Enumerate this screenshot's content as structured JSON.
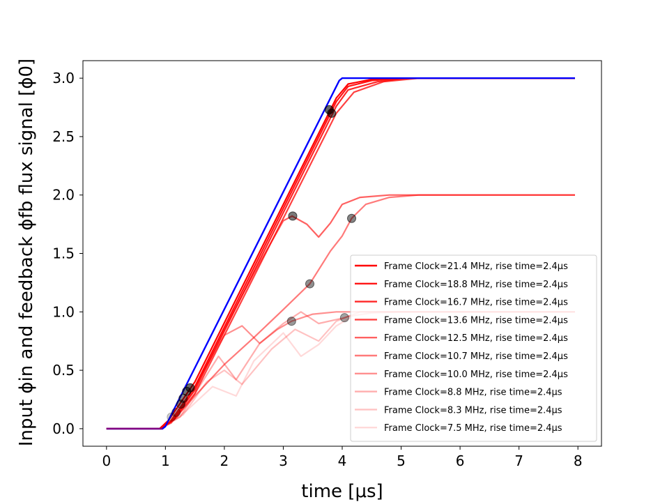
{
  "chart_data": {
    "type": "line",
    "xlabel": "time [μs]",
    "ylabel": "Input ϕin and feedback ϕfb flux signal [ϕ0]",
    "xlim": [
      -0.4,
      8.4
    ],
    "ylim": [
      -0.15,
      3.15
    ],
    "xticks": [
      0,
      1,
      2,
      3,
      4,
      5,
      6,
      7,
      8
    ],
    "yticks": [
      0.0,
      0.5,
      1.0,
      1.5,
      2.0,
      2.5,
      3.0
    ],
    "xtick_labels": [
      "0",
      "1",
      "2",
      "3",
      "4",
      "5",
      "6",
      "7",
      "8"
    ],
    "ytick_labels": [
      "0.0",
      "0.5",
      "1.0",
      "1.5",
      "2.0",
      "2.5",
      "3.0"
    ],
    "grid": false,
    "legend_position": "lower-right",
    "input_series": {
      "color": "#0000ff",
      "x": [
        0,
        0.95,
        1.0,
        3.95,
        4.0,
        7.95
      ],
      "y": [
        0,
        0,
        0.02,
        2.98,
        3.0,
        3.0
      ]
    },
    "series": [
      {
        "name": "Frame Clock=21.4 MHz, rise time=2.4μs",
        "color": "#ff0000",
        "opacity": 1.0,
        "x": [
          0,
          0.9,
          1.05,
          1.5,
          3.9,
          4.1,
          4.5,
          5.0,
          7.95
        ],
        "y": [
          0,
          0,
          0.07,
          0.4,
          2.83,
          2.95,
          2.99,
          3.0,
          3.0
        ]
      },
      {
        "name": "Frame Clock=18.8 MHz, rise time=2.4μs",
        "color": "#ff0000",
        "opacity": 0.92,
        "x": [
          0,
          0.9,
          1.08,
          1.5,
          3.9,
          4.1,
          4.5,
          5.0,
          7.95
        ],
        "y": [
          0,
          0,
          0.06,
          0.36,
          2.8,
          2.93,
          2.98,
          3.0,
          3.0
        ]
      },
      {
        "name": "Frame Clock=16.7 MHz, rise time=2.4μs",
        "color": "#ff0000",
        "opacity": 0.85,
        "x": [
          0,
          0.9,
          1.1,
          1.5,
          3.9,
          4.1,
          4.6,
          5.1,
          7.95
        ],
        "y": [
          0,
          0,
          0.06,
          0.33,
          2.76,
          2.9,
          2.97,
          3.0,
          3.0
        ]
      },
      {
        "name": "Frame Clock=13.6 MHz, rise time=2.4μs",
        "color": "#ff0000",
        "opacity": 0.75,
        "x": [
          0,
          0.9,
          1.15,
          1.5,
          3.9,
          4.2,
          4.7,
          5.3,
          7.95
        ],
        "y": [
          0,
          0,
          0.08,
          0.3,
          2.7,
          2.88,
          2.97,
          3.0,
          3.0
        ]
      },
      {
        "name": "Frame Clock=12.5 MHz, rise time=2.4μs",
        "color": "#ff0000",
        "opacity": 0.62,
        "x": [
          0,
          0.9,
          1.1,
          1.5,
          2.0,
          2.5,
          3.0,
          3.15,
          3.4,
          3.6,
          3.8,
          4.0,
          4.3,
          4.8,
          5.3,
          7.95
        ],
        "y": [
          0,
          0,
          0.05,
          0.35,
          0.85,
          1.33,
          1.78,
          1.82,
          1.75,
          1.64,
          1.76,
          1.92,
          1.98,
          2.0,
          2.0,
          2.0
        ]
      },
      {
        "name": "Frame Clock=10.7 MHz, rise time=2.4μs",
        "color": "#ff0000",
        "opacity": 0.52,
        "x": [
          0,
          0.9,
          1.15,
          1.5,
          2.0,
          2.5,
          3.0,
          3.45,
          3.8,
          4.0,
          4.16,
          4.4,
          4.8,
          5.3,
          7.95
        ],
        "y": [
          0,
          0,
          0.08,
          0.28,
          0.55,
          0.78,
          1.02,
          1.24,
          1.52,
          1.65,
          1.8,
          1.92,
          1.98,
          2.0,
          2.0
        ]
      },
      {
        "name": "Frame Clock=10.0 MHz, rise time=2.4μs",
        "color": "#ff0000",
        "opacity": 0.44,
        "x": [
          0,
          0.9,
          1.2,
          1.6,
          2.0,
          2.3,
          2.6,
          2.9,
          3.14,
          3.5,
          3.9,
          4.5,
          5.5,
          7.95
        ],
        "y": [
          0,
          0,
          0.1,
          0.45,
          0.8,
          0.88,
          0.73,
          0.85,
          0.92,
          0.98,
          1.0,
          1.0,
          1.0,
          1.0
        ]
      },
      {
        "name": "Frame Clock=8.8 MHz, rise time=2.4μs",
        "color": "#ff0000",
        "opacity": 0.32,
        "x": [
          0,
          0.9,
          1.25,
          1.6,
          1.9,
          2.2,
          2.6,
          3.0,
          3.3,
          3.6,
          4.04,
          4.3,
          5.0,
          7.95
        ],
        "y": [
          0,
          0,
          0.1,
          0.38,
          0.62,
          0.42,
          0.73,
          0.9,
          1.0,
          0.9,
          0.95,
          1.0,
          1.0,
          1.0
        ]
      },
      {
        "name": "Frame Clock=8.3 MHz, rise time=2.4μs",
        "color": "#ff0000",
        "opacity": 0.24,
        "x": [
          0,
          0.9,
          1.3,
          1.7,
          2.0,
          2.3,
          2.8,
          3.2,
          3.6,
          3.9,
          4.1,
          4.5,
          5.0,
          7.95
        ],
        "y": [
          0,
          0,
          0.12,
          0.4,
          0.5,
          0.38,
          0.68,
          0.85,
          0.75,
          0.92,
          0.96,
          0.99,
          1.0,
          1.0
        ]
      },
      {
        "name": "Frame Clock=7.5 MHz, rise time=2.4μs",
        "color": "#ff0000",
        "opacity": 0.15,
        "x": [
          0,
          0.9,
          1.35,
          1.8,
          2.2,
          2.5,
          3.0,
          3.3,
          3.6,
          3.9,
          4.2,
          4.6,
          7.95
        ],
        "y": [
          0,
          0,
          0.15,
          0.36,
          0.28,
          0.58,
          0.82,
          0.62,
          0.72,
          0.88,
          0.97,
          1.0,
          1.0
        ]
      }
    ],
    "markers": [
      {
        "x": 3.78,
        "y": 2.73,
        "opacity": 0.75
      },
      {
        "x": 3.82,
        "y": 2.7,
        "opacity": 0.7
      },
      {
        "x": 3.16,
        "y": 1.82,
        "opacity": 0.65
      },
      {
        "x": 4.16,
        "y": 1.8,
        "opacity": 0.6
      },
      {
        "x": 3.45,
        "y": 1.24,
        "opacity": 0.55
      },
      {
        "x": 3.14,
        "y": 0.92,
        "opacity": 0.5
      },
      {
        "x": 4.04,
        "y": 0.95,
        "opacity": 0.45
      },
      {
        "x": 1.42,
        "y": 0.35,
        "opacity": 0.75
      },
      {
        "x": 1.36,
        "y": 0.32,
        "opacity": 0.7
      },
      {
        "x": 1.3,
        "y": 0.26,
        "opacity": 0.6
      },
      {
        "x": 1.26,
        "y": 0.21,
        "opacity": 0.6
      },
      {
        "x": 1.18,
        "y": 0.14,
        "opacity": 0.35
      },
      {
        "x": 1.1,
        "y": 0.1,
        "opacity": 0.25
      }
    ]
  }
}
